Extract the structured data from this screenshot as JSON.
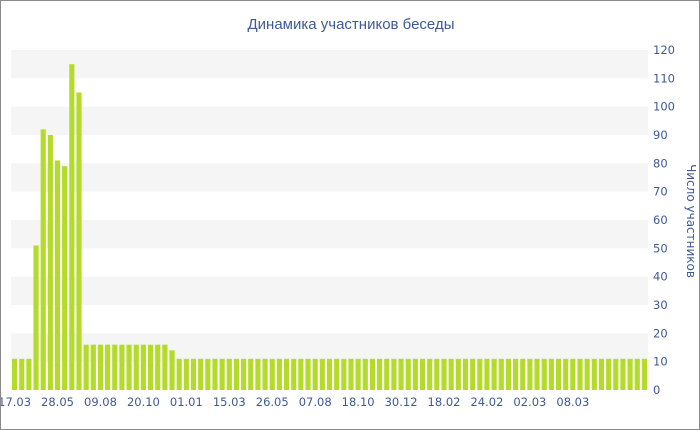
{
  "chart_data": {
    "type": "bar",
    "title": "Динамика участников беседы",
    "xlabel": "",
    "ylabel": "Число участников",
    "ylim": [
      0,
      120
    ],
    "y_ticks": [
      0,
      10,
      20,
      30,
      40,
      50,
      60,
      70,
      80,
      90,
      100,
      110,
      120
    ],
    "x_tick_labels": [
      "17.03",
      "28.05",
      "09.08",
      "20.10",
      "01.01",
      "15.03",
      "26.05",
      "07.08",
      "18.10",
      "30.12",
      "18.02",
      "24.02",
      "02.03",
      "08.03"
    ],
    "bar_color": "#b5db2a",
    "band_color": "#f5f5f5",
    "text_color": "#3e5a96",
    "values": [
      11,
      11,
      11,
      51,
      92,
      90,
      81,
      79,
      115,
      105,
      16,
      16,
      16,
      16,
      16,
      16,
      16,
      16,
      16,
      16,
      16,
      16,
      14,
      11,
      11,
      11,
      11,
      11,
      11,
      11,
      11,
      11,
      11,
      11,
      11,
      11,
      11,
      11,
      11,
      11,
      11,
      11,
      11,
      11,
      11,
      11,
      11,
      11,
      11,
      11,
      11,
      11,
      11,
      11,
      11,
      11,
      11,
      11,
      11,
      11,
      11,
      11,
      11,
      11,
      11,
      11,
      11,
      11,
      11,
      11,
      11,
      11,
      11,
      11,
      11,
      11,
      11,
      11,
      11,
      11,
      11,
      11,
      11,
      11,
      11,
      11,
      11,
      11,
      11
    ]
  }
}
